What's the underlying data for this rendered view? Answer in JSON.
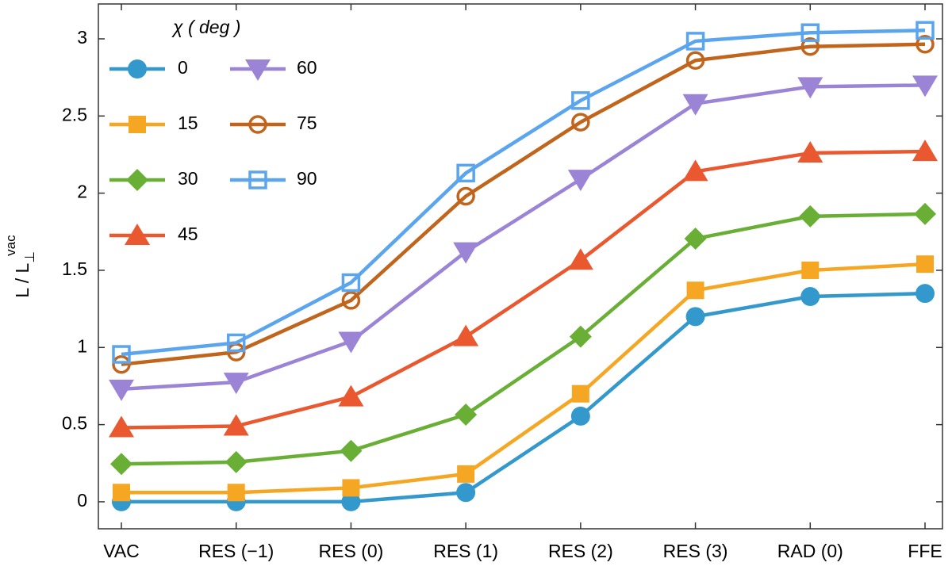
{
  "chart_data": {
    "type": "line",
    "ylabel": {
      "main": "L / L",
      "sub": "⊥",
      "sup": "vac"
    },
    "legend_title": "χ ( deg )",
    "categories": [
      "VAC",
      "RES (−1)",
      "RES (0)",
      "RES (1)",
      "RES (2)",
      "RES (3)",
      "RAD (0)",
      "FFE"
    ],
    "series": [
      {
        "name": "0",
        "color": "#3399cc",
        "marker": "circle",
        "values": [
          0,
          0,
          0,
          0.06,
          0.555,
          1.2,
          1.33,
          1.35
        ]
      },
      {
        "name": "15",
        "color": "#f5a623",
        "marker": "square",
        "values": [
          0.06,
          0.06,
          0.09,
          0.18,
          0.7,
          1.37,
          1.5,
          1.54
        ]
      },
      {
        "name": "30",
        "color": "#6aaf35",
        "marker": "diamond",
        "values": [
          0.245,
          0.257,
          0.33,
          0.565,
          1.07,
          1.705,
          1.85,
          1.865
        ]
      },
      {
        "name": "45",
        "color": "#e9582e",
        "marker": "triangle-up",
        "values": [
          0.48,
          0.49,
          0.68,
          1.07,
          1.565,
          2.14,
          2.26,
          2.27
        ]
      },
      {
        "name": "60",
        "color": "#9b84d6",
        "marker": "triangle-down",
        "values": [
          0.73,
          0.775,
          1.04,
          1.62,
          2.09,
          2.58,
          2.69,
          2.7
        ]
      },
      {
        "name": "75",
        "color": "#c0651b",
        "marker": "open-circle",
        "values": [
          0.89,
          0.97,
          1.305,
          1.98,
          2.46,
          2.86,
          2.95,
          2.965
        ]
      },
      {
        "name": "90",
        "color": "#5aa5ee",
        "marker": "open-square",
        "values": [
          0.955,
          1.03,
          1.42,
          2.13,
          2.6,
          2.985,
          3.04,
          3.055
        ]
      }
    ],
    "ylim": [
      -0.175,
      3.226
    ],
    "yticks": [
      0,
      0.5,
      1,
      1.5,
      2,
      2.5,
      3
    ]
  }
}
